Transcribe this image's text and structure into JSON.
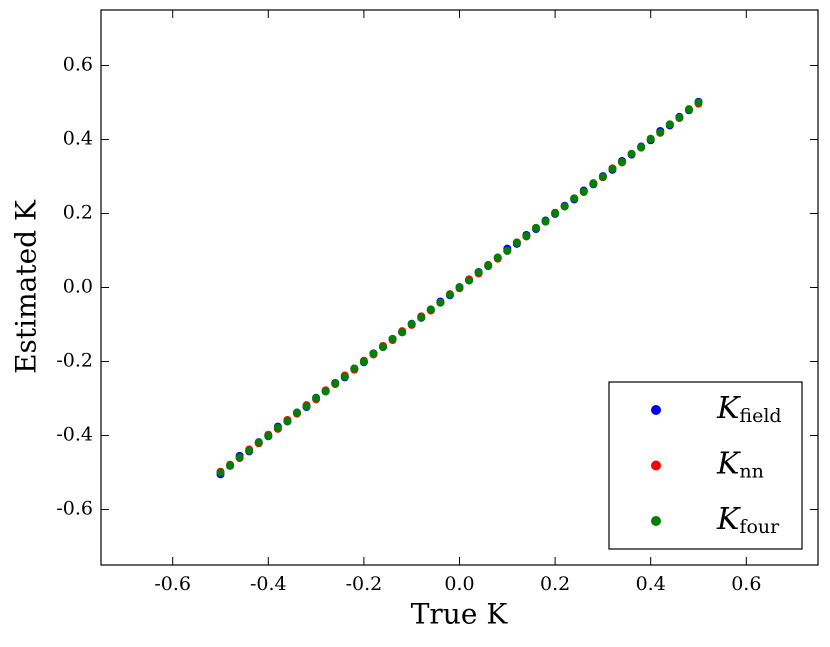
{
  "chart_data": {
    "type": "scatter",
    "xlabel": "True K",
    "ylabel": "Estimated K",
    "x": [
      -0.5,
      -0.48,
      -0.46,
      -0.44,
      -0.42,
      -0.4,
      -0.38,
      -0.36,
      -0.34,
      -0.32,
      -0.3,
      -0.28,
      -0.26,
      -0.24,
      -0.22,
      -0.2,
      -0.18,
      -0.16,
      -0.14,
      -0.12,
      -0.1,
      -0.08,
      -0.06,
      -0.04,
      -0.02,
      0,
      0.02,
      0.04,
      0.06,
      0.08,
      0.1,
      0.12,
      0.14,
      0.16,
      0.18,
      0.2,
      0.22,
      0.24,
      0.26,
      0.28,
      0.3,
      0.32,
      0.34,
      0.36,
      0.38,
      0.4,
      0.42,
      0.44,
      0.46,
      0.48,
      0.5
    ],
    "series": [
      {
        "name": "K_field",
        "color": "#0000ff",
        "values": [
          -0.505,
          -0.482,
          -0.455,
          -0.443,
          -0.418,
          -0.402,
          -0.376,
          -0.362,
          -0.338,
          -0.323,
          -0.298,
          -0.281,
          -0.258,
          -0.243,
          -0.219,
          -0.202,
          -0.178,
          -0.161,
          -0.139,
          -0.121,
          -0.098,
          -0.082,
          -0.061,
          -0.038,
          -0.021,
          0.001,
          0.019,
          0.042,
          0.058,
          0.081,
          0.105,
          0.118,
          0.142,
          0.158,
          0.181,
          0.199,
          0.221,
          0.238,
          0.262,
          0.279,
          0.301,
          0.318,
          0.342,
          0.359,
          0.381,
          0.398,
          0.423,
          0.438,
          0.461,
          0.479,
          0.502
        ]
      },
      {
        "name": "K_nn",
        "color": "#ff0000",
        "values": [
          -0.498,
          -0.479,
          -0.461,
          -0.438,
          -0.421,
          -0.398,
          -0.382,
          -0.358,
          -0.341,
          -0.318,
          -0.302,
          -0.278,
          -0.261,
          -0.238,
          -0.222,
          -0.198,
          -0.181,
          -0.158,
          -0.142,
          -0.118,
          -0.101,
          -0.078,
          -0.062,
          -0.041,
          -0.018,
          -0.002,
          0.022,
          0.038,
          0.061,
          0.078,
          0.099,
          0.122,
          0.138,
          0.161,
          0.178,
          0.202,
          0.219,
          0.241,
          0.258,
          0.282,
          0.298,
          0.322,
          0.338,
          0.361,
          0.378,
          0.402,
          0.418,
          0.441,
          0.458,
          0.482,
          0.497
        ]
      },
      {
        "name": "K_four",
        "color": "#008000",
        "values": [
          -0.5,
          -0.481,
          -0.459,
          -0.441,
          -0.419,
          -0.401,
          -0.379,
          -0.361,
          -0.339,
          -0.321,
          -0.299,
          -0.281,
          -0.259,
          -0.241,
          -0.219,
          -0.201,
          -0.179,
          -0.161,
          -0.139,
          -0.121,
          -0.099,
          -0.081,
          -0.059,
          -0.041,
          -0.019,
          0,
          0.019,
          0.041,
          0.059,
          0.081,
          0.099,
          0.121,
          0.139,
          0.161,
          0.179,
          0.201,
          0.219,
          0.241,
          0.259,
          0.281,
          0.299,
          0.321,
          0.339,
          0.361,
          0.379,
          0.401,
          0.419,
          0.441,
          0.459,
          0.481,
          0.5
        ]
      }
    ],
    "xlim": [
      -0.75,
      0.75
    ],
    "ylim": [
      -0.75,
      0.75
    ],
    "xticks": [
      -0.6,
      -0.4,
      -0.2,
      {
        "value": 0,
        "label": "0.0"
      },
      0.2,
      0.4,
      0.6
    ],
    "yticks": [
      -0.6,
      -0.4,
      -0.2,
      {
        "value": 0,
        "label": "0.0"
      },
      0.2,
      0.4,
      0.6
    ],
    "grid": false,
    "legend": "lower right"
  }
}
